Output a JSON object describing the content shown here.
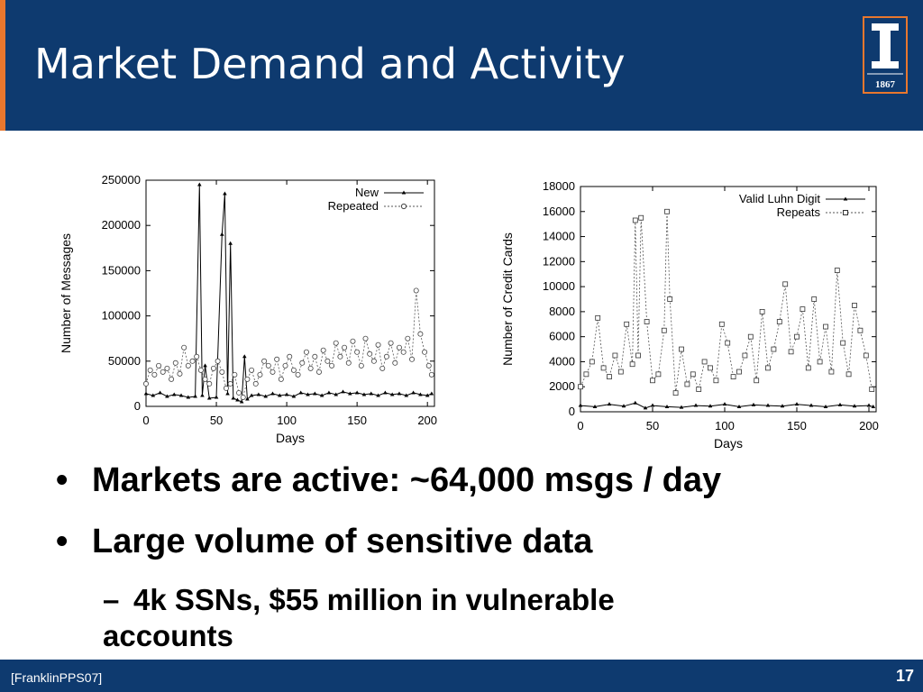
{
  "slide": {
    "title": "Market Demand and Activity",
    "citation": "[FranklinPPS07]",
    "page_number": "17",
    "logo_text": "1867",
    "bullets": [
      "Markets are active: ~64,000 msgs / day",
      "Large volume of sensitive data"
    ],
    "sub_bullets": [
      "4k SSNs, $55 million in vulnerable accounts"
    ]
  },
  "chart_data": [
    {
      "type": "line",
      "xlabel": "Days",
      "ylabel": "Number of Messages",
      "xlim": [
        0,
        205
      ],
      "ylim": [
        0,
        250000
      ],
      "xticks": [
        0,
        50,
        100,
        150,
        200
      ],
      "yticks": [
        0,
        50000,
        100000,
        150000,
        200000,
        250000
      ],
      "legend_position": "top-right",
      "grid": false,
      "series": [
        {
          "name": "New",
          "marker": "triangle",
          "line": "solid",
          "x": [
            0,
            5,
            10,
            15,
            20,
            25,
            30,
            35,
            38,
            40,
            42,
            45,
            50,
            54,
            56,
            58,
            60,
            62,
            65,
            68,
            70,
            72,
            75,
            80,
            85,
            90,
            95,
            100,
            105,
            110,
            115,
            120,
            125,
            130,
            135,
            140,
            145,
            150,
            155,
            160,
            165,
            170,
            175,
            180,
            185,
            190,
            195,
            200,
            203
          ],
          "y": [
            14000,
            12000,
            15000,
            11000,
            13000,
            12000,
            10000,
            11000,
            245000,
            12000,
            45000,
            9000,
            10000,
            190000,
            235000,
            14000,
            180000,
            9000,
            7000,
            5000,
            55000,
            8000,
            12000,
            13000,
            11000,
            14000,
            12000,
            13000,
            11000,
            15000,
            13000,
            14000,
            12000,
            15000,
            13000,
            16000,
            14000,
            15000,
            13000,
            14000,
            12000,
            15000,
            13000,
            14000,
            12000,
            15000,
            13000,
            12000,
            14000
          ]
        },
        {
          "name": "Repeated",
          "marker": "circle",
          "line": "dotted",
          "x": [
            0,
            3,
            6,
            9,
            12,
            15,
            18,
            21,
            24,
            27,
            30,
            33,
            36,
            39,
            42,
            45,
            48,
            51,
            54,
            57,
            60,
            63,
            66,
            69,
            72,
            75,
            78,
            81,
            84,
            87,
            90,
            93,
            96,
            99,
            102,
            105,
            108,
            111,
            114,
            117,
            120,
            123,
            126,
            129,
            132,
            135,
            138,
            141,
            144,
            147,
            150,
            153,
            156,
            159,
            162,
            165,
            168,
            171,
            174,
            177,
            180,
            183,
            186,
            189,
            192,
            195,
            198,
            201,
            203
          ],
          "y": [
            25000,
            40000,
            35000,
            45000,
            38000,
            42000,
            30000,
            48000,
            36000,
            65000,
            45000,
            50000,
            55000,
            40000,
            30000,
            25000,
            42000,
            50000,
            38000,
            20000,
            25000,
            35000,
            15000,
            10000,
            30000,
            40000,
            25000,
            35000,
            50000,
            45000,
            38000,
            52000,
            30000,
            45000,
            55000,
            40000,
            35000,
            48000,
            60000,
            42000,
            55000,
            38000,
            62000,
            50000,
            45000,
            70000,
            55000,
            65000,
            48000,
            72000,
            60000,
            45000,
            75000,
            58000,
            50000,
            68000,
            42000,
            55000,
            70000,
            48000,
            65000,
            60000,
            75000,
            52000,
            128000,
            80000,
            60000,
            45000,
            35000
          ]
        }
      ]
    },
    {
      "type": "line",
      "xlabel": "Days",
      "ylabel": "Number of Credit Cards",
      "xlim": [
        0,
        205
      ],
      "ylim": [
        0,
        18000
      ],
      "xticks": [
        0,
        50,
        100,
        150,
        200
      ],
      "yticks": [
        0,
        2000,
        4000,
        6000,
        8000,
        10000,
        12000,
        14000,
        16000,
        18000
      ],
      "legend_position": "top-right",
      "grid": false,
      "series": [
        {
          "name": "Valid Luhn Digit",
          "marker": "triangle",
          "line": "solid",
          "x": [
            0,
            10,
            20,
            30,
            38,
            45,
            50,
            60,
            70,
            80,
            90,
            100,
            110,
            120,
            130,
            140,
            150,
            160,
            170,
            180,
            190,
            200,
            203
          ],
          "y": [
            500,
            400,
            600,
            450,
            700,
            300,
            500,
            400,
            350,
            500,
            450,
            600,
            400,
            550,
            500,
            450,
            600,
            500,
            400,
            550,
            450,
            500,
            400
          ]
        },
        {
          "name": "Repeats",
          "marker": "square",
          "line": "dotted",
          "x": [
            0,
            4,
            8,
            12,
            16,
            20,
            24,
            28,
            32,
            36,
            38,
            40,
            42,
            46,
            50,
            54,
            58,
            60,
            62,
            66,
            70,
            74,
            78,
            82,
            86,
            90,
            94,
            98,
            102,
            106,
            110,
            114,
            118,
            122,
            126,
            130,
            134,
            138,
            142,
            146,
            150,
            154,
            158,
            162,
            166,
            170,
            174,
            178,
            182,
            186,
            190,
            194,
            198,
            202
          ],
          "y": [
            2000,
            3000,
            4000,
            7500,
            3500,
            2800,
            4500,
            3200,
            7000,
            3800,
            15300,
            4500,
            15500,
            7200,
            2500,
            3000,
            6500,
            16000,
            9000,
            1500,
            5000,
            2200,
            3000,
            1800,
            4000,
            3500,
            2500,
            7000,
            5500,
            2800,
            3200,
            4500,
            6000,
            2500,
            8000,
            3500,
            5000,
            7200,
            10200,
            4800,
            6000,
            8200,
            3500,
            9000,
            4000,
            6800,
            3200,
            11300,
            5500,
            3000,
            8500,
            6500,
            4500,
            1800
          ]
        }
      ]
    }
  ]
}
